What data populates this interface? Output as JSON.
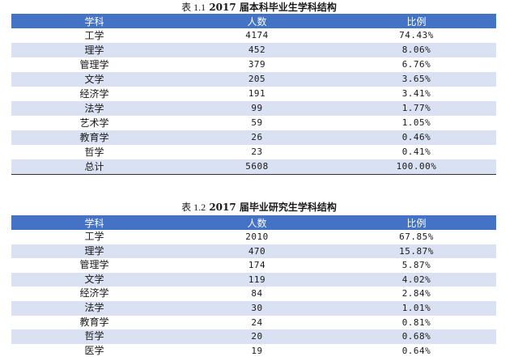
{
  "table1": {
    "caption_label": "表 1.1",
    "caption_title": "2017 届本科毕业生学科结构",
    "headers": [
      "学科",
      "人数",
      "比例"
    ],
    "rows": [
      [
        "工学",
        "4174",
        "74.43%"
      ],
      [
        "理学",
        "452",
        "8.06%"
      ],
      [
        "管理学",
        "379",
        "6.76%"
      ],
      [
        "文学",
        "205",
        "3.65%"
      ],
      [
        "经济学",
        "191",
        "3.41%"
      ],
      [
        "法学",
        "99",
        "1.77%"
      ],
      [
        "艺术学",
        "59",
        "1.05%"
      ],
      [
        "教育学",
        "26",
        "0.46%"
      ],
      [
        "哲学",
        "23",
        "0.41%"
      ],
      [
        "总计",
        "5608",
        "100.00%"
      ]
    ]
  },
  "table2": {
    "caption_label": "表 1.2",
    "caption_title": "2017 届毕业研究生学科结构",
    "headers": [
      "学科",
      "人数",
      "比例"
    ],
    "rows": [
      [
        "工学",
        "2010",
        "67.85%"
      ],
      [
        "理学",
        "470",
        "15.87%"
      ],
      [
        "管理学",
        "174",
        "5.87%"
      ],
      [
        "文学",
        "119",
        "4.02%"
      ],
      [
        "经济学",
        "84",
        "2.84%"
      ],
      [
        "法学",
        "30",
        "1.01%"
      ],
      [
        "教育学",
        "24",
        "0.81%"
      ],
      [
        "哲学",
        "20",
        "0.68%"
      ],
      [
        "医学",
        "19",
        "0.64%"
      ]
    ]
  }
}
